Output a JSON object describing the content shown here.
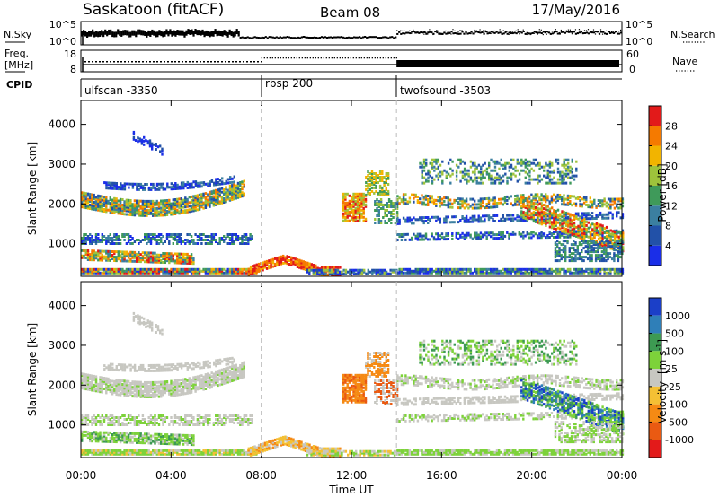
{
  "header": {
    "station": "Saskatoon (fitACF)",
    "beam": "Beam 08",
    "date": "17/May/2016"
  },
  "left_labels": {
    "nsky": "N.Sky",
    "freq": "Freq.",
    "freq_unit": "[MHz]",
    "cpid": "CPID"
  },
  "right_labels": {
    "nsearch": "N.Search",
    "nave": "Nave"
  },
  "nsky_panel": {
    "left_ticks": [
      "10^5",
      "10^0"
    ],
    "right_ticks": [
      "10^5",
      "10^0"
    ]
  },
  "freq_panel": {
    "left_ticks": [
      "18",
      "8"
    ],
    "right_ticks": [
      "60",
      "0"
    ]
  },
  "cpid_panel": {
    "modes": [
      {
        "label": "ulfscan -3350",
        "start_hr": 0
      },
      {
        "label": "rbsp 200",
        "start_hr": 8
      },
      {
        "label": "twofsound -3503",
        "start_hr": 14
      }
    ]
  },
  "chart_data": [
    {
      "type": "heatmap",
      "quantity": "power",
      "ylabel": "Slant Range [km]",
      "ylim": [
        180,
        4600
      ],
      "xlim": [
        0,
        24
      ],
      "y_ticks": [
        "1000",
        "2000",
        "3000",
        "4000"
      ],
      "colorbar": {
        "label": "Power [dB]",
        "tick_labels": [
          "4",
          "8",
          "12",
          "16",
          "20",
          "24",
          "28"
        ],
        "levels": [
          0,
          4,
          8,
          12,
          16,
          20,
          24,
          28,
          30
        ],
        "colors": [
          "#1a2ee8",
          "#2251a8",
          "#3b7fa0",
          "#3f9a5a",
          "#9ec33b",
          "#f2b400",
          "#f57a00",
          "#e21a1a"
        ]
      }
    },
    {
      "type": "heatmap",
      "quantity": "velocity",
      "ylabel": "Slant Range [km]",
      "ylim": [
        180,
        4600
      ],
      "xlim": [
        0,
        24
      ],
      "y_ticks": [
        "1000",
        "2000",
        "3000",
        "4000"
      ],
      "colorbar": {
        "label_main": "Velocity",
        "label_unit": "[m s",
        "label_exp": "-1",
        "tick_labels": [
          "1000",
          "500",
          "100",
          "25",
          "-25",
          "-100",
          "-500",
          "-1000"
        ],
        "colors": [
          "#1b3fc8",
          "#2f7fb8",
          "#3d9a52",
          "#7dd23a",
          "#c7c7c1",
          "#f4c034",
          "#f58a14",
          "#ea5a12",
          "#e31a1a"
        ]
      }
    }
  ],
  "x_axis": {
    "label": "Time UT",
    "ticks": [
      "00:00",
      "04:00",
      "08:00",
      "12:00",
      "16:00",
      "20:00",
      "00:00"
    ]
  }
}
